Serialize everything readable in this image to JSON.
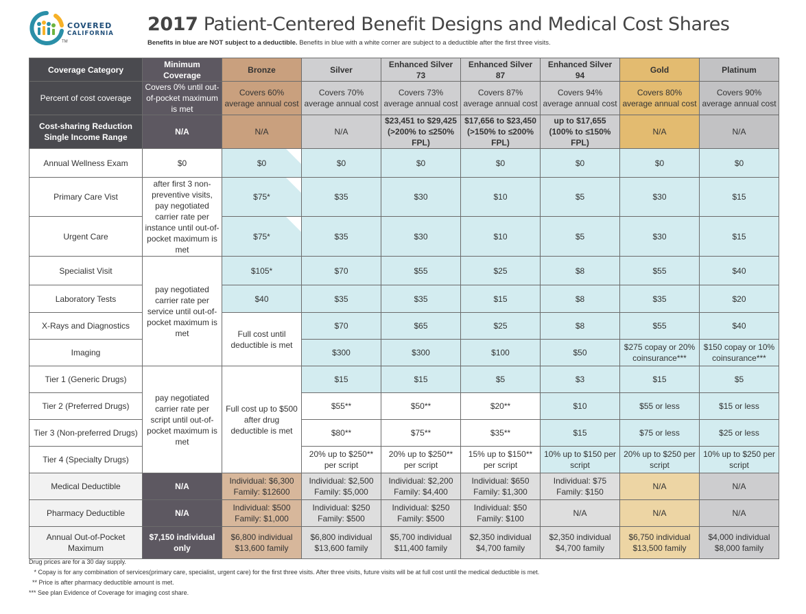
{
  "logo": {
    "word1": "COVERED",
    "word2": "CALIFORNIA",
    "tm": "TM"
  },
  "title": {
    "year": "2017",
    "text": "Patient-Centered Benefit Designs and Medical Cost Shares"
  },
  "subtitle": {
    "bold": "Benefits in blue are NOT subject to a deductible.",
    "rest": "Benefits in blue with a white corner are subject to a deductible after the first three visits."
  },
  "columns": [
    "Coverage Category",
    "Minimum Coverage",
    "Bronze",
    "Silver",
    "Enhanced Silver 73",
    "Enhanced Silver 87",
    "Enhanced Silver 94",
    "Gold",
    "Platinum"
  ],
  "percent_row": {
    "label": "Percent of cost coverage",
    "min": "Covers 0% until out-of-pocket maximum is met",
    "bronze": "Covers 60% average annual cost",
    "silver": "Covers 70% average annual cost",
    "es73": "Covers 73% average annual cost",
    "es87": "Covers 87% average annual cost",
    "es94": "Covers 94% average annual cost",
    "gold": "Covers 80% average annual cost",
    "plat": "Covers 90% average annual cost"
  },
  "csr_row": {
    "label": "Cost-sharing Reduction Single Income Range",
    "min": "N/A",
    "bronze": "N/A",
    "silver": "N/A",
    "es73": "$23,451 to $29,425 (>200% to ≤250% FPL)",
    "es87": "$17,656 to $23,450 (>150% to ≤200% FPL)",
    "es94": "up to $17,655 (100% to ≤150% FPL)",
    "gold": "N/A",
    "plat": "N/A"
  },
  "rows": {
    "wellness": {
      "label": "Annual Wellness Exam",
      "min": "$0",
      "bronze": "$0",
      "silver": "$0",
      "es73": "$0",
      "es87": "$0",
      "es94": "$0",
      "gold": "$0",
      "plat": "$0"
    },
    "primary": {
      "label": "Primary Care Vist",
      "bronze": "$75*",
      "silver": "$35",
      "es73": "$30",
      "es87": "$10",
      "es94": "$5",
      "gold": "$30",
      "plat": "$15"
    },
    "urgent": {
      "label": "Urgent Care",
      "bronze": "$75*",
      "silver": "$35",
      "es73": "$30",
      "es87": "$10",
      "es94": "$5",
      "gold": "$30",
      "plat": "$15"
    },
    "specialist": {
      "label": "Specialist Visit",
      "bronze": "$105*",
      "silver": "$70",
      "es73": "$55",
      "es87": "$25",
      "es94": "$8",
      "gold": "$55",
      "plat": "$40"
    },
    "lab": {
      "label": "Laboratory Tests",
      "bronze": "$40",
      "silver": "$35",
      "es73": "$35",
      "es87": "$15",
      "es94": "$8",
      "gold": "$35",
      "plat": "$20"
    },
    "xray": {
      "label": "X-Rays and Diagnostics",
      "silver": "$70",
      "es73": "$65",
      "es87": "$25",
      "es94": "$8",
      "gold": "$55",
      "plat": "$40"
    },
    "imaging": {
      "label": "Imaging",
      "silver": "$300",
      "es73": "$300",
      "es87": "$100",
      "es94": "$50",
      "gold": "$275 copay or 20% coinsurance***",
      "plat": "$150 copay or 10% coinsurance***"
    },
    "tier1": {
      "label": "Tier 1 (Generic Drugs)",
      "silver": "$15",
      "es73": "$15",
      "es87": "$5",
      "es94": "$3",
      "gold": "$15",
      "plat": "$5"
    },
    "tier2": {
      "label": "Tier 2 (Preferred Drugs)",
      "silver": "$55**",
      "es73": "$50**",
      "es87": "$20**",
      "es94": "$10",
      "gold": "$55 or less",
      "plat": "$15 or less"
    },
    "tier3": {
      "label": "Tier 3 (Non-preferred Drugs)",
      "silver": "$80**",
      "es73": "$75**",
      "es87": "$35**",
      "es94": "$15",
      "gold": "$75 or less",
      "plat": "$25 or less"
    },
    "tier4": {
      "label": "Tier 4 (Specialty Drugs)",
      "silver": "20% up to $250** per script",
      "es73": "20% up to $250** per script",
      "es87": "15% up to $150** per script",
      "es94": "10% up to $150 per script",
      "gold": "20% up to $250 per script",
      "plat": "10% up to $250 per script"
    },
    "med_ded": {
      "label": "Medical Deductible",
      "min": "N/A",
      "bronze": "Individual: $6,300 Family: $12600",
      "silver": "Individual: $2,500 Family: $5,000",
      "es73": "Individual: $2,200 Family: $4,400",
      "es87": "Individual: $650 Family: $1,300",
      "es94": "Individual: $75 Family: $150",
      "gold": "N/A",
      "plat": "N/A"
    },
    "rx_ded": {
      "label": "Pharmacy Deductible",
      "min": "N/A",
      "bronze": "Individual: $500 Family: $1,000",
      "silver": "Individual: $250 Family: $500",
      "es73": "Individual: $250 Family: $500",
      "es87": "Individual: $50 Family: $100",
      "es94": "N/A",
      "gold": "N/A",
      "plat": "N/A"
    },
    "oop": {
      "label": "Annual Out-of-Pocket Maximum",
      "min": "$7,150 individual only",
      "bronze": "$6,800 individual $13,600 family",
      "silver": "$6,800 individual $13,600 family",
      "es73": "$5,700 individual $11,400 family",
      "es87": "$2,350 individual $4,700 family",
      "es94": "$2,350 individual $4,700 family",
      "gold": "$6,750 individual $13,500 family",
      "plat": "$4,000 individual $8,000 family"
    }
  },
  "merged": {
    "min_primary_urgent": "after first 3 non-preventive visits, pay negotiated carrier rate per instance until out-of-pocket maximum is met",
    "min_specialist_imaging": "pay negotiated carrier rate per service until out-of-pocket maximum is met",
    "bronze_xray_imaging": "Full cost until deductible is met",
    "min_drugs": "pay negotiated carrier rate per script until out-of-pocket maximum is met",
    "bronze_drugs": "Full cost up to $500 after drug deductible is met"
  },
  "footnotes": [
    "Drug prices are for a 30 day supply.",
    "   * Copay is for any combination of services(primary care, specialist, urgent care) for the first three visits. After three visits, future visits will be at full cost until the medical deductible is met.",
    "  ** Price is after pharmacy deductible amount is met.",
    "*** See plan Evidence of Coverage for imaging cost share."
  ],
  "colors": {
    "header_dark": "#4a4a4f",
    "min_dark": "#5d5861",
    "bronze": "#c9a07e",
    "silver": "#cfcfd1",
    "gold": "#e3bb70",
    "platinum": "#c2c2c4",
    "no_deductible_blue": "#d3ecf0"
  }
}
